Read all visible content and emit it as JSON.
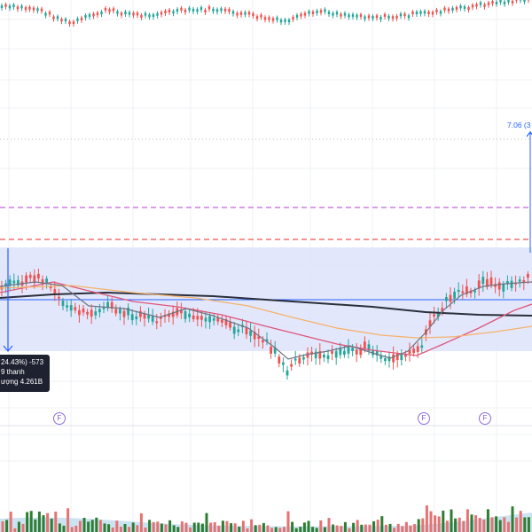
{
  "measure": {
    "price_label": "7.06 (3",
    "tooltip_line1": "24.43%) -573",
    "tooltip_line2": "9 thanh",
    "tooltip_line3": "ượng 4.261B"
  },
  "events": [
    {
      "label": "F"
    },
    {
      "label": "F"
    },
    {
      "label": "F"
    }
  ],
  "colors": {
    "up": "#26a69a",
    "down": "#ef5350",
    "volume_up": "#2e7d32",
    "volume_down": "#e57373",
    "ma_black": "#2b2f3a",
    "ma_pink": "#e0567a",
    "ma_orange": "#f5b26b",
    "ma_grey": "#6f7382",
    "range_fill": "#dde3fb",
    "blue": "#2962ff",
    "magenta": "#c660e0",
    "red_dash": "#ef5350",
    "volume_area": "#b7d8ec"
  },
  "icons": [
    "arrow-down-icon",
    "arrow-up-icon",
    "event-f-icon"
  ]
}
